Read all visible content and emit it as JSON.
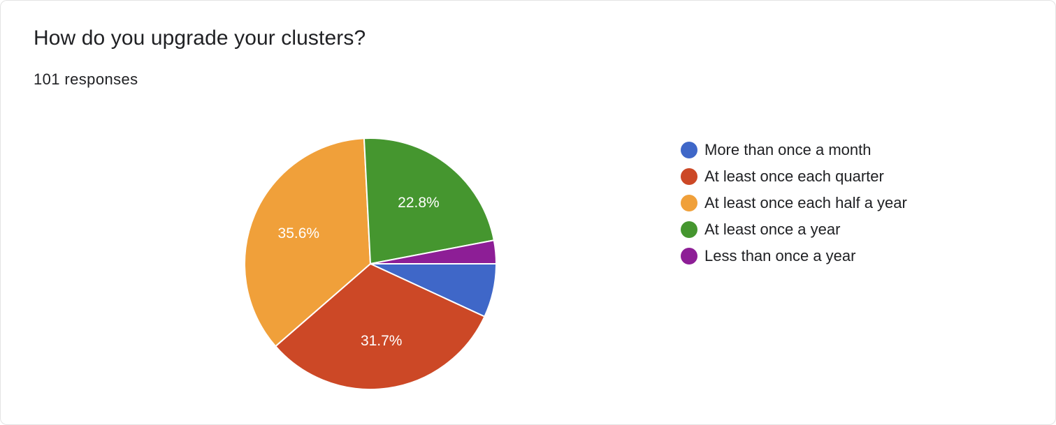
{
  "header": {
    "question": "How do you upgrade your clusters?",
    "responses": "101 responses"
  },
  "chart_data": {
    "type": "pie",
    "title": "How do you upgrade your clusters?",
    "subtitle": "101 responses",
    "legend_position": "right",
    "categories": [
      "More than once a month",
      "At least once each quarter",
      "At least once each half a year",
      "At least once a year",
      "Less than once a year"
    ],
    "values": [
      6.9,
      31.7,
      35.6,
      22.8,
      3.0
    ],
    "data_labels": [
      "",
      "31.7%",
      "35.6%",
      "22.8%",
      ""
    ],
    "colors": [
      "#3f67c8",
      "#cc4826",
      "#f0a03a",
      "#45962f",
      "#8d1e96"
    ]
  }
}
